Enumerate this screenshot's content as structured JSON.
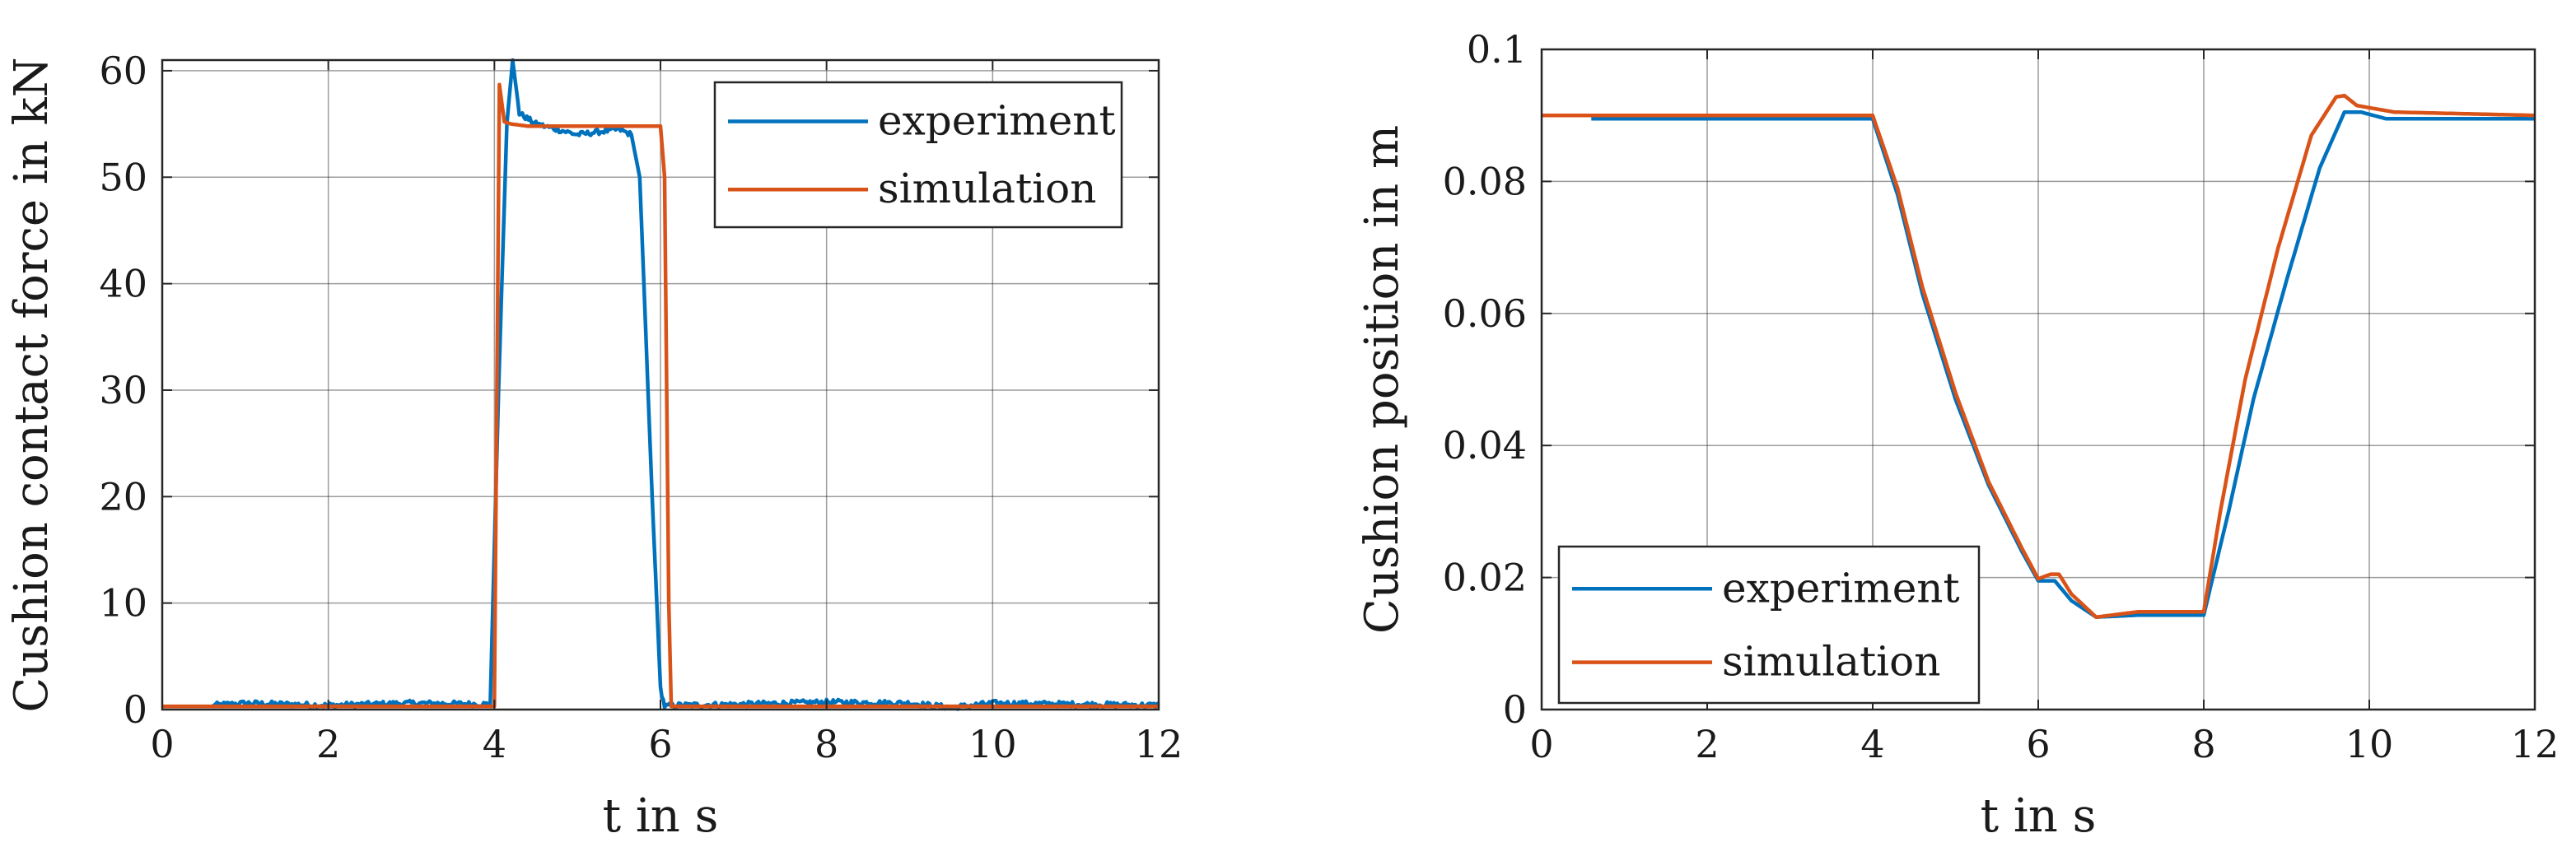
{
  "figure": {
    "caption": ""
  },
  "chart_data": [
    {
      "type": "line",
      "title": "",
      "xlabel": "t in s",
      "ylabel": "Cushion contact force in kN",
      "xlim": [
        0,
        12
      ],
      "ylim": [
        0,
        61
      ],
      "xticks": [
        "0",
        "2",
        "4",
        "6",
        "8",
        "10",
        "12"
      ],
      "yticks": [
        "0",
        "10",
        "20",
        "30",
        "40",
        "50",
        "60"
      ],
      "grid": true,
      "legend_position": "top-right",
      "series": [
        {
          "name": "experiment",
          "color": "#0072BD",
          "noise": 0.25,
          "x": [
            0.6,
            1.0,
            2.0,
            3.0,
            3.95,
            4.05,
            4.15,
            4.22,
            4.3,
            4.5,
            5.0,
            5.5,
            5.65,
            5.75,
            5.9,
            6.0,
            6.05,
            6.2,
            7.0,
            8.0,
            9.0,
            9.5,
            10.0,
            11.0,
            12.0
          ],
          "y": [
            0.4,
            0.6,
            0.4,
            0.6,
            0.5,
            30.0,
            55.0,
            61.0,
            56.0,
            55.0,
            54.0,
            54.5,
            54.0,
            50.0,
            20.0,
            2.0,
            0.3,
            0.4,
            0.5,
            0.7,
            0.6,
            0.2,
            0.6,
            0.5,
            0.4
          ]
        },
        {
          "name": "simulation",
          "color": "#D95319",
          "noise": 0,
          "x": [
            0.0,
            4.0,
            4.06,
            4.12,
            4.2,
            4.4,
            6.0,
            6.05,
            6.1,
            6.13,
            6.2,
            12.0
          ],
          "y": [
            0.3,
            0.3,
            58.7,
            55.2,
            55.0,
            54.8,
            54.8,
            50.0,
            10.0,
            0.3,
            0.3,
            0.3
          ]
        }
      ]
    },
    {
      "type": "line",
      "title": "",
      "xlabel": "t in s",
      "ylabel": "Cushion position in m",
      "xlim": [
        0,
        12
      ],
      "ylim": [
        0,
        0.1
      ],
      "xticks": [
        "0",
        "2",
        "4",
        "6",
        "8",
        "10",
        "12"
      ],
      "yticks": [
        "0",
        "0.02",
        "0.04",
        "0.06",
        "0.08",
        "0.1"
      ],
      "grid": true,
      "legend_position": "bottom-left",
      "series": [
        {
          "name": "experiment",
          "color": "#0072BD",
          "noise": 0,
          "x": [
            0.6,
            4.0,
            4.3,
            4.6,
            5.0,
            5.4,
            5.8,
            6.0,
            6.1,
            6.2,
            6.4,
            6.7,
            7.2,
            8.0,
            8.3,
            8.6,
            9.0,
            9.4,
            9.7,
            9.9,
            10.2,
            11.0,
            12.0
          ],
          "y": [
            0.0895,
            0.0895,
            0.078,
            0.063,
            0.047,
            0.034,
            0.024,
            0.0195,
            0.0195,
            0.0195,
            0.0165,
            0.014,
            0.0143,
            0.0143,
            0.03,
            0.047,
            0.065,
            0.082,
            0.0905,
            0.0905,
            0.0895,
            0.0895,
            0.0895
          ]
        },
        {
          "name": "simulation",
          "color": "#D95319",
          "noise": 0,
          "x": [
            0.0,
            4.0,
            4.3,
            4.6,
            5.0,
            5.4,
            5.8,
            6.0,
            6.15,
            6.25,
            6.4,
            6.7,
            7.2,
            8.0,
            8.2,
            8.5,
            8.9,
            9.3,
            9.6,
            9.7,
            9.85,
            10.3,
            12.0
          ],
          "y": [
            0.09,
            0.09,
            0.079,
            0.064,
            0.048,
            0.0345,
            0.0245,
            0.0198,
            0.0205,
            0.0205,
            0.0175,
            0.014,
            0.0148,
            0.0148,
            0.03,
            0.05,
            0.07,
            0.087,
            0.0928,
            0.093,
            0.0915,
            0.0905,
            0.09
          ]
        }
      ]
    }
  ]
}
